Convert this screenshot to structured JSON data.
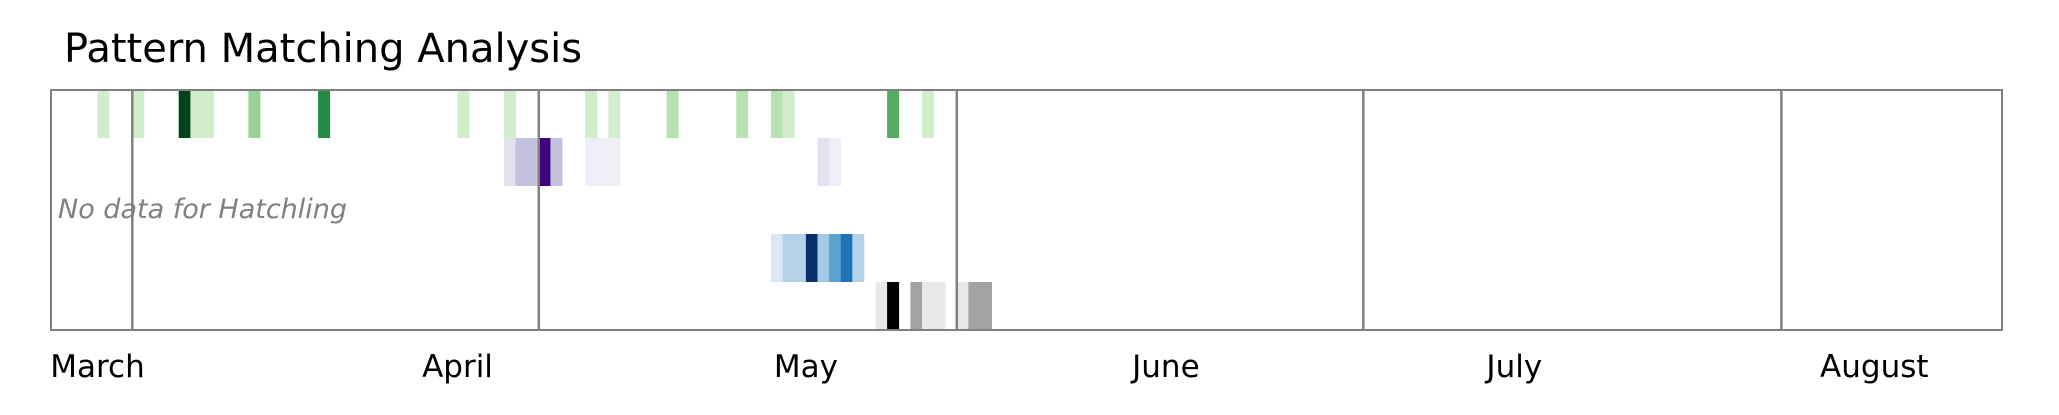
{
  "chart_data": {
    "type": "heatmap",
    "title": "Pattern Matching Analysis",
    "x_unit": "week",
    "xlim": [
      "2024-02-26",
      "2024-08-12"
    ],
    "x_tick_labels": [
      {
        "label": "March",
        "date": "2024-03-01"
      },
      {
        "label": "April",
        "date": "2024-04-01"
      },
      {
        "label": "May",
        "date": "2024-05-01"
      },
      {
        "label": "June",
        "date": "2024-06-01"
      },
      {
        "label": "July",
        "date": "2024-07-01"
      },
      {
        "label": "August",
        "date": "2024-08-01"
      }
    ],
    "boundaries": [
      "2024-03-04",
      "2024-04-08",
      "2024-05-14",
      "2024-06-18",
      "2024-07-24"
    ],
    "grid": false,
    "legend": "none",
    "rows": [
      {
        "colormap": "Greens",
        "cells": [
          {
            "date": "2024-03-01",
            "value": 0.2
          },
          {
            "date": "2024-03-04",
            "value": 0.2
          },
          {
            "date": "2024-03-08",
            "value": 1.0
          },
          {
            "date": "2024-03-09",
            "value": 0.2
          },
          {
            "date": "2024-03-10",
            "value": 0.2
          },
          {
            "date": "2024-03-14",
            "value": 0.4
          },
          {
            "date": "2024-03-20",
            "value": 0.75
          },
          {
            "date": "2024-04-01",
            "value": 0.2
          },
          {
            "date": "2024-04-05",
            "value": 0.2
          },
          {
            "date": "2024-04-12",
            "value": 0.2
          },
          {
            "date": "2024-04-14",
            "value": 0.2
          },
          {
            "date": "2024-04-19",
            "value": 0.3
          },
          {
            "date": "2024-04-25",
            "value": 0.3
          },
          {
            "date": "2024-04-28",
            "value": 0.3
          },
          {
            "date": "2024-04-29",
            "value": 0.2
          },
          {
            "date": "2024-05-08",
            "value": 0.6
          },
          {
            "date": "2024-05-11",
            "value": 0.2
          }
        ]
      },
      {
        "colormap": "Purples",
        "cells": [
          {
            "date": "2024-04-05",
            "value": 0.2
          },
          {
            "date": "2024-04-06",
            "value": 0.35
          },
          {
            "date": "2024-04-07",
            "value": 0.35
          },
          {
            "date": "2024-04-08",
            "value": 1.0
          },
          {
            "date": "2024-04-09",
            "value": 0.35
          },
          {
            "date": "2024-04-12",
            "value": 0.1
          },
          {
            "date": "2024-04-13",
            "value": 0.1
          },
          {
            "date": "2024-04-14",
            "value": 0.1
          },
          {
            "date": "2024-05-02",
            "value": 0.2
          },
          {
            "date": "2024-05-03",
            "value": 0.1
          }
        ]
      },
      {
        "label": "Hatchling",
        "empty_text": "No data for Hatchling",
        "colormap": null,
        "cells": []
      },
      {
        "colormap": "Blues",
        "cells": [
          {
            "date": "2024-04-28",
            "value": 0.15
          },
          {
            "date": "2024-04-29",
            "value": 0.3
          },
          {
            "date": "2024-04-30",
            "value": 0.3
          },
          {
            "date": "2024-05-01",
            "value": 1.0
          },
          {
            "date": "2024-05-02",
            "value": 0.35
          },
          {
            "date": "2024-05-03",
            "value": 0.55
          },
          {
            "date": "2024-05-04",
            "value": 0.75
          },
          {
            "date": "2024-05-05",
            "value": 0.3
          }
        ]
      },
      {
        "colormap": "Greys",
        "cells": [
          {
            "date": "2024-05-07",
            "value": 0.15
          },
          {
            "date": "2024-05-08",
            "value": 1.0
          },
          {
            "date": "2024-05-10",
            "value": 0.45
          },
          {
            "date": "2024-05-11",
            "value": 0.15
          },
          {
            "date": "2024-05-12",
            "value": 0.15
          },
          {
            "date": "2024-05-14",
            "value": 0.15
          },
          {
            "date": "2024-05-15",
            "value": 0.45
          },
          {
            "date": "2024-05-16",
            "value": 0.45
          }
        ]
      }
    ]
  }
}
